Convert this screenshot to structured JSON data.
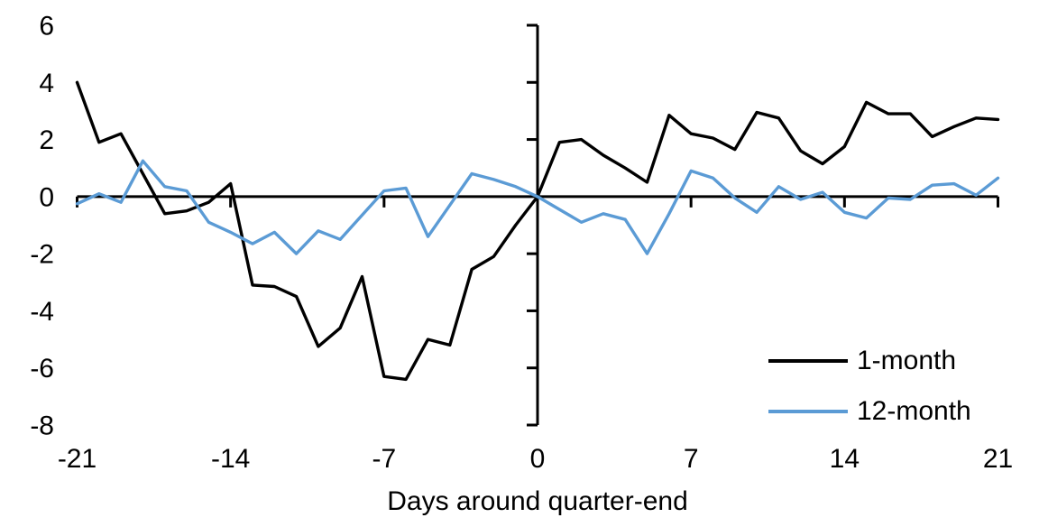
{
  "chart_data": {
    "type": "line",
    "title": "",
    "xlabel": "Days around quarter-end",
    "ylabel": "",
    "xlim": [
      -21,
      21
    ],
    "ylim": [
      -8,
      6
    ],
    "x_ticks": [
      -21,
      -14,
      -7,
      0,
      7,
      14,
      21
    ],
    "y_ticks": [
      6,
      4,
      2,
      0,
      -2,
      -4,
      -6,
      -8
    ],
    "grid": "off",
    "legend_position": "inside-bottom-right",
    "axis_color": "#000000",
    "x": [
      -21,
      -20,
      -19,
      -18,
      -17,
      -16,
      -15,
      -14,
      -13,
      -12,
      -11,
      -10,
      -9,
      -8,
      -7,
      -6,
      -5,
      -4,
      -3,
      -2,
      -1,
      0,
      1,
      2,
      3,
      4,
      5,
      6,
      7,
      8,
      9,
      10,
      11,
      12,
      13,
      14,
      15,
      16,
      17,
      18,
      19,
      20,
      21
    ],
    "series": [
      {
        "name": "1-month",
        "color": "#000000",
        "values": [
          4.0,
          1.9,
          2.2,
          0.8,
          -0.6,
          -0.5,
          -0.2,
          0.45,
          -3.1,
          -3.15,
          -3.5,
          -5.25,
          -4.6,
          -2.8,
          -6.3,
          -6.4,
          -5.0,
          -5.2,
          -2.55,
          -2.1,
          -1.0,
          0.0,
          1.9,
          2.0,
          1.45,
          1.0,
          0.5,
          2.85,
          2.2,
          2.05,
          1.65,
          2.95,
          2.75,
          1.6,
          1.15,
          1.75,
          3.3,
          2.9,
          2.9,
          2.1,
          2.45,
          2.75,
          2.7
        ]
      },
      {
        "name": "12-month",
        "color": "#5B9BD5",
        "values": [
          -0.25,
          0.1,
          -0.2,
          1.25,
          0.35,
          0.2,
          -0.9,
          -1.25,
          -1.65,
          -1.25,
          -2.0,
          -1.2,
          -1.5,
          -0.65,
          0.2,
          0.3,
          -1.4,
          -0.3,
          0.8,
          0.6,
          0.35,
          0.0,
          -0.45,
          -0.9,
          -0.6,
          -0.8,
          -2.0,
          -0.6,
          0.9,
          0.65,
          -0.05,
          -0.55,
          0.35,
          -0.1,
          0.15,
          -0.55,
          -0.75,
          -0.05,
          -0.1,
          0.4,
          0.45,
          0.05,
          0.65
        ]
      }
    ]
  }
}
